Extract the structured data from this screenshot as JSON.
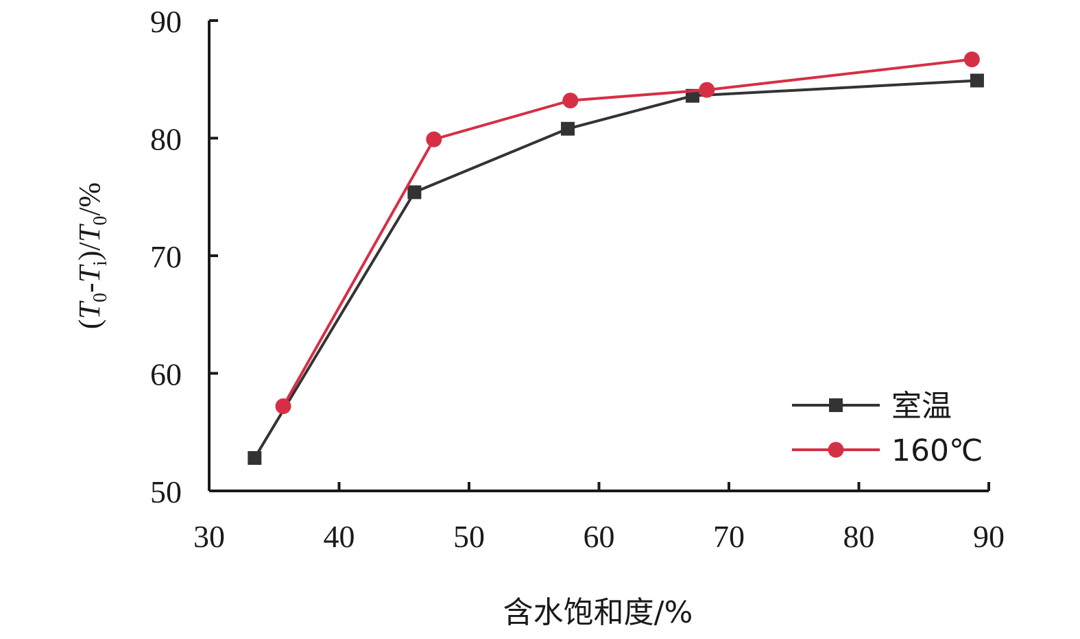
{
  "chart_data": {
    "type": "line",
    "xlabel": "含水饱和度/%",
    "ylabel": {
      "parts": [
        {
          "text": "(",
          "italic": false,
          "sub": false
        },
        {
          "text": "T",
          "italic": true,
          "sub": false
        },
        {
          "text": "0",
          "italic": false,
          "sub": true
        },
        {
          "text": "-",
          "italic": false,
          "sub": false
        },
        {
          "text": "T",
          "italic": true,
          "sub": false
        },
        {
          "text": "i",
          "italic": false,
          "sub": true
        },
        {
          "text": ")/",
          "italic": false,
          "sub": false
        },
        {
          "text": "T",
          "italic": true,
          "sub": false
        },
        {
          "text": "0",
          "italic": false,
          "sub": true
        },
        {
          "text": "/%",
          "italic": false,
          "sub": false
        }
      ]
    },
    "xlim": [
      30,
      90
    ],
    "ylim": [
      50,
      90
    ],
    "xticks": [
      "30",
      "40",
      "50",
      "60",
      "70",
      "80",
      "90"
    ],
    "yticks": [
      "50",
      "60",
      "70",
      "80",
      "90"
    ],
    "grid": false,
    "legend_position": "bottom-right",
    "series": [
      {
        "name": "室温",
        "color": "#333333",
        "marker": "square",
        "x": [
          33.5,
          45.8,
          57.6,
          67.2,
          89.1
        ],
        "y": [
          52.8,
          75.4,
          80.8,
          83.6,
          84.9
        ]
      },
      {
        "name": "160℃",
        "color": "#d62f45",
        "marker": "circle",
        "x": [
          35.7,
          47.3,
          57.8,
          68.3,
          88.7
        ],
        "y": [
          57.2,
          79.9,
          83.2,
          84.1,
          86.7
        ]
      }
    ]
  }
}
